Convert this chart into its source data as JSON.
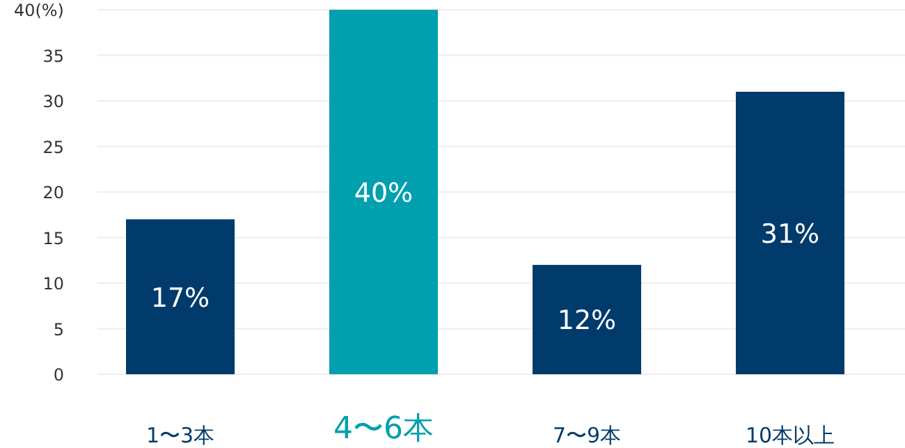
{
  "chart_data": {
    "type": "bar",
    "categories": [
      "1〜3本",
      "4〜6本",
      "7〜9本",
      "10本以上"
    ],
    "values": [
      17,
      40,
      12,
      31
    ],
    "colors": [
      "#003b6b",
      "#00a0ae",
      "#003b6b",
      "#003b6b"
    ],
    "value_labels": [
      "17%",
      "40%",
      "12%",
      "31%"
    ],
    "ylim": [
      0,
      40
    ],
    "yticks": [
      0,
      5,
      10,
      15,
      20,
      25,
      30,
      35,
      {
        "value": 40,
        "label": "40(%)"
      }
    ],
    "grid": "y"
  }
}
